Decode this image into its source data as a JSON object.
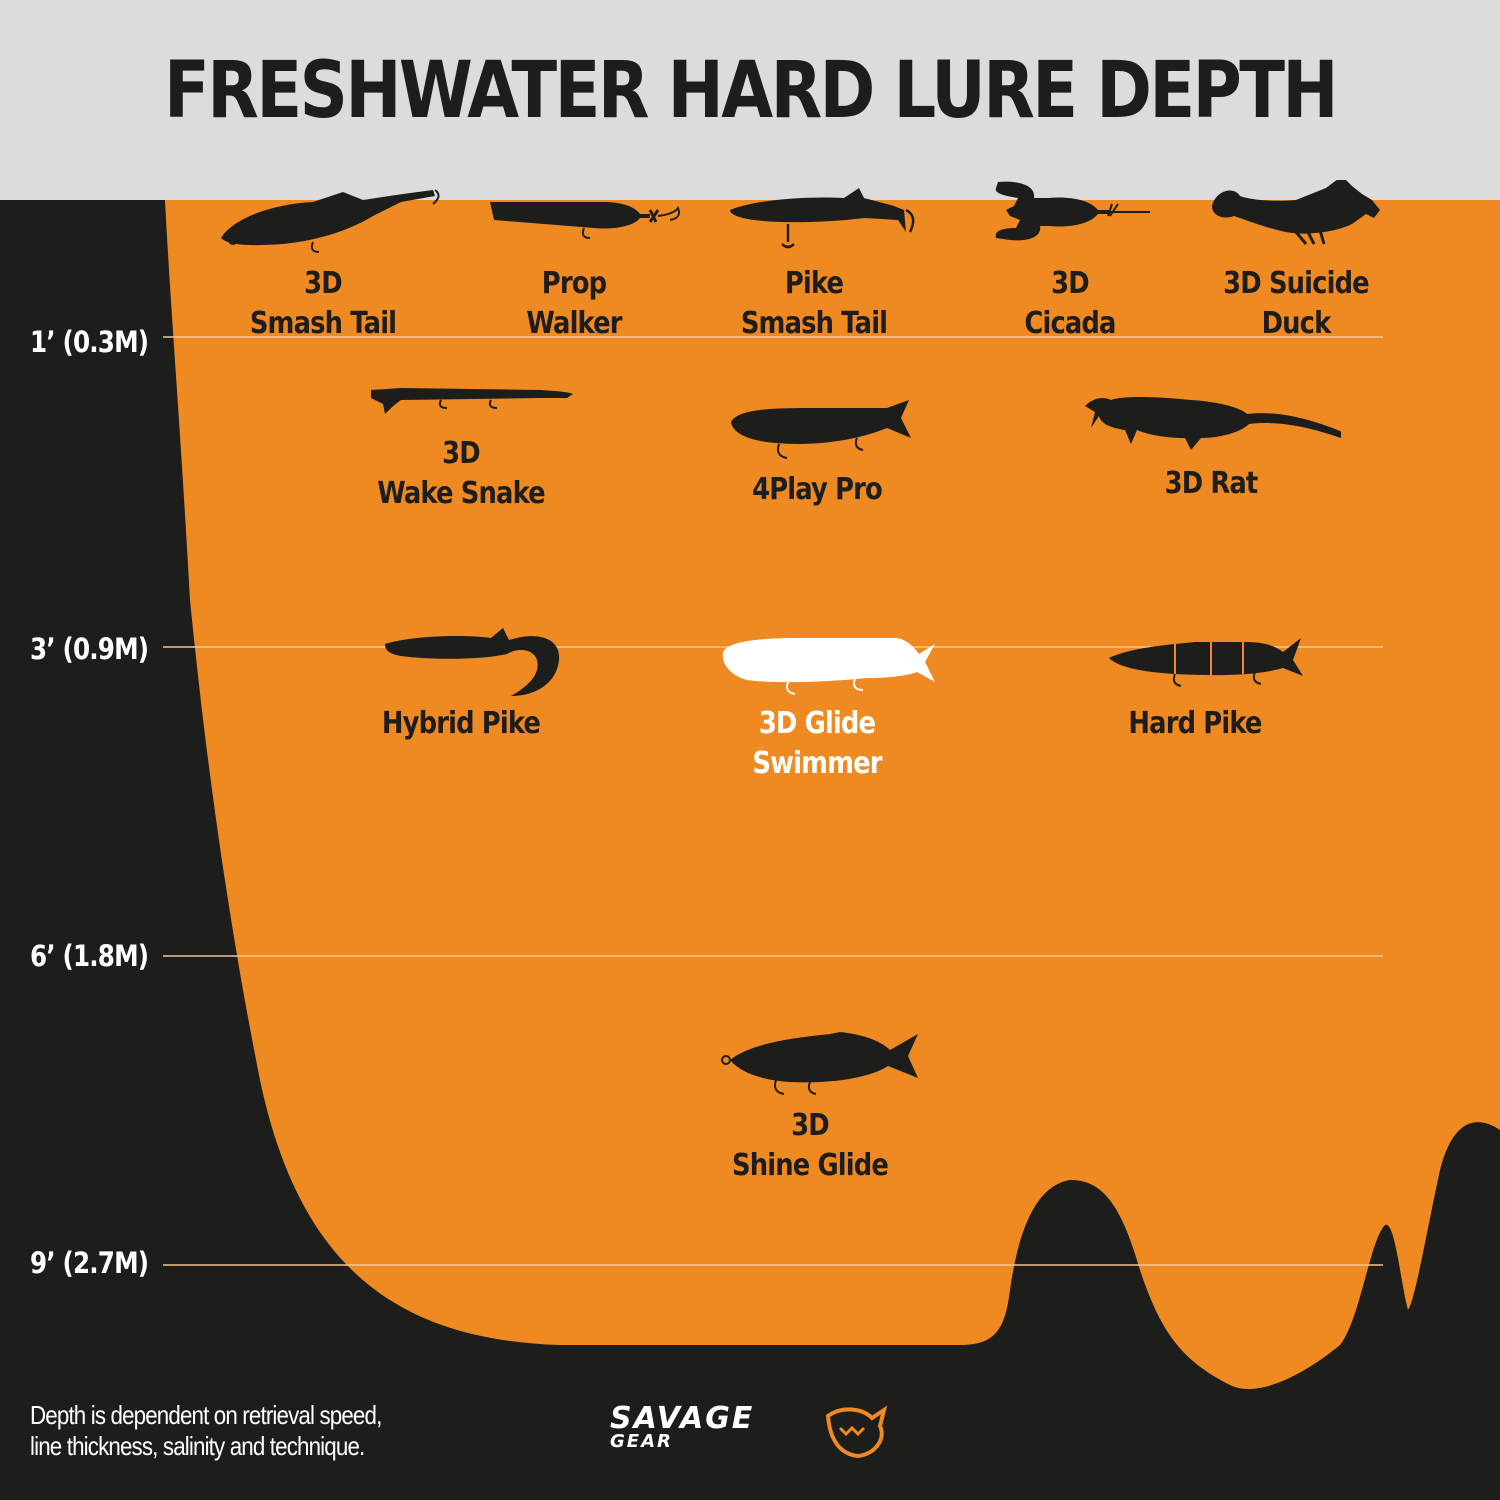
{
  "title": "FRESHWATER HARD LURE DEPTH",
  "depth_markers": [
    {
      "label": "1’ (0.3M)"
    },
    {
      "label": "3’ (0.9M)"
    },
    {
      "label": "6’ (1.8M)"
    },
    {
      "label": "9’ (2.7M)"
    }
  ],
  "lures": [
    {
      "name": "3D\nSmash Tail",
      "highlighted": false
    },
    {
      "name": "Prop\nWalker",
      "highlighted": false
    },
    {
      "name": "Pike\nSmash Tail",
      "highlighted": false
    },
    {
      "name": "3D\nCicada",
      "highlighted": false
    },
    {
      "name": "3D Suicide\nDuck",
      "highlighted": false
    },
    {
      "name": "3D\nWake Snake",
      "highlighted": false
    },
    {
      "name": "4Play Pro",
      "highlighted": false
    },
    {
      "name": "3D Rat",
      "highlighted": false
    },
    {
      "name": "Hybrid Pike",
      "highlighted": false
    },
    {
      "name": "3D Glide\nSwimmer",
      "highlighted": true
    },
    {
      "name": "Hard Pike",
      "highlighted": false
    },
    {
      "name": "3D\nShine Glide",
      "highlighted": false
    }
  ],
  "note": "Depth is dependent on retrieval speed,\nline thickness, salinity and technique.",
  "brand": {
    "word": "SAVAGE",
    "sub": "GEAR"
  },
  "colors": {
    "water": "#ef8a22",
    "ground": "#1d1d1b",
    "header": "#dcdcdc",
    "silhouette": "#1d1d1b",
    "highlight": "#ffffff"
  }
}
